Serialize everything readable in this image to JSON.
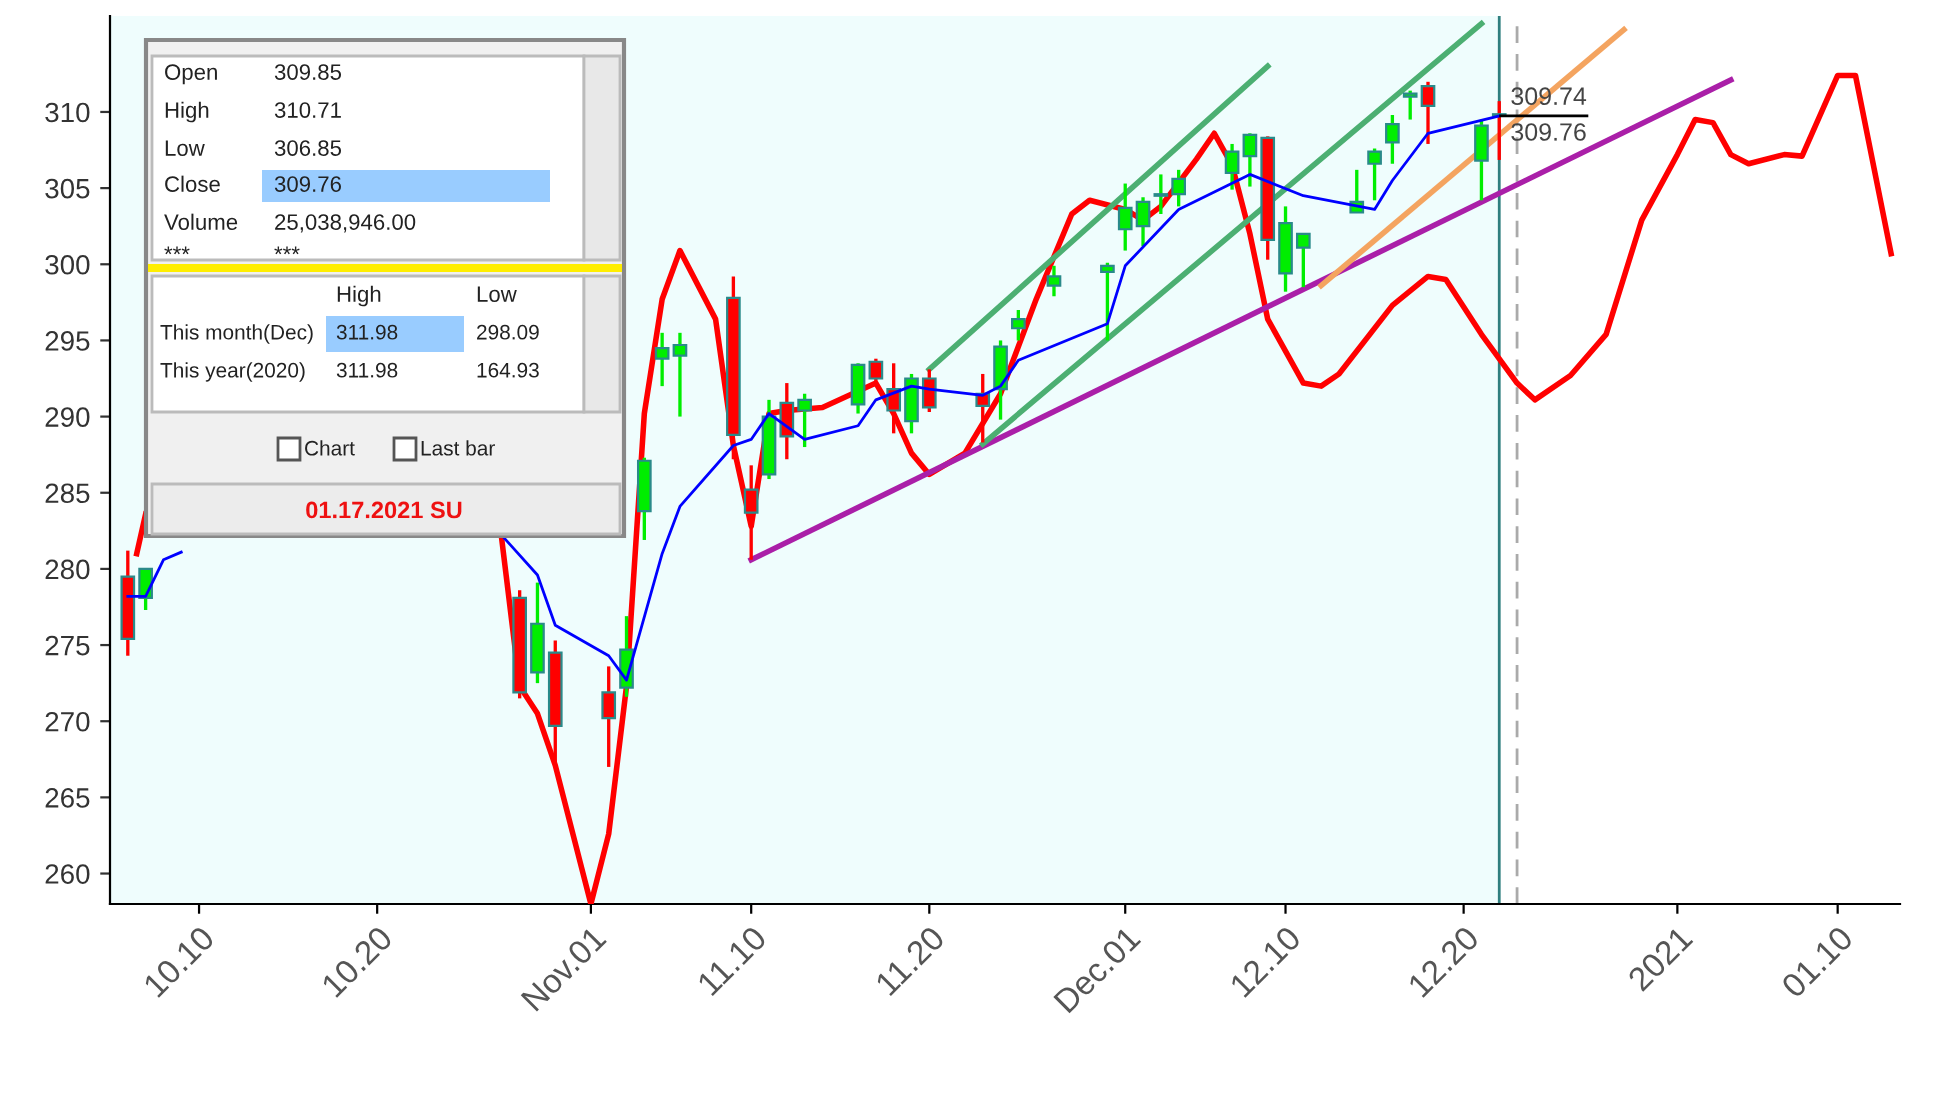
{
  "chart_data": {
    "type": "candlestick",
    "x": [
      "2020-10-06",
      "2020-10-07",
      "2020-10-28",
      "2020-10-29",
      "2020-10-30",
      "2020-11-02",
      "2020-11-03",
      "2020-11-04",
      "2020-11-05",
      "2020-11-06",
      "2020-11-09",
      "2020-11-10",
      "2020-11-11",
      "2020-11-12",
      "2020-11-13",
      "2020-11-16",
      "2020-11-17",
      "2020-11-18",
      "2020-11-19",
      "2020-11-20",
      "2020-11-23",
      "2020-11-24",
      "2020-11-25",
      "2020-11-27",
      "2020-11-30",
      "2020-12-01",
      "2020-12-02",
      "2020-12-03",
      "2020-12-04",
      "2020-12-07",
      "2020-12-08",
      "2020-12-09",
      "2020-12-10",
      "2020-12-11",
      "2020-12-14",
      "2020-12-15",
      "2020-12-16",
      "2020-12-17",
      "2020-12-18",
      "2020-12-21",
      "2020-12-22"
    ],
    "ohlc": [
      [
        279.5,
        281.2,
        274.3,
        275.4
      ],
      [
        278.1,
        280.0,
        277.3,
        280.0
      ],
      [
        278.1,
        278.6,
        271.5,
        271.9
      ],
      [
        273.2,
        279.1,
        272.5,
        276.4
      ],
      [
        274.5,
        275.3,
        267.1,
        269.7
      ],
      [
        271.9,
        273.6,
        267.0,
        270.2
      ],
      [
        272.2,
        276.9,
        271.6,
        274.7
      ],
      [
        283.8,
        287.3,
        281.9,
        287.1
      ],
      [
        293.8,
        295.5,
        292.0,
        294.5
      ],
      [
        294.0,
        295.5,
        290.0,
        294.7
      ],
      [
        297.8,
        299.2,
        287.2,
        288.8
      ],
      [
        285.2,
        286.8,
        280.6,
        283.7
      ],
      [
        286.2,
        291.1,
        285.9,
        290.0
      ],
      [
        290.9,
        292.2,
        287.2,
        288.7
      ],
      [
        290.4,
        291.5,
        288.0,
        291.1
      ],
      [
        290.8,
        293.5,
        290.2,
        293.4
      ],
      [
        293.6,
        293.8,
        292.0,
        292.5
      ],
      [
        291.8,
        293.5,
        288.9,
        290.4
      ],
      [
        289.7,
        292.8,
        288.9,
        292.5
      ],
      [
        292.5,
        293.1,
        290.3,
        290.6
      ],
      [
        291.5,
        292.8,
        288.3,
        290.7
      ],
      [
        291.8,
        295.0,
        289.8,
        294.6
      ],
      [
        295.8,
        297.0,
        295.0,
        296.4
      ],
      [
        298.6,
        299.9,
        297.9,
        299.2
      ],
      [
        299.5,
        300.1,
        295.0,
        299.9
      ],
      [
        302.3,
        305.3,
        300.9,
        303.7
      ],
      [
        302.5,
        304.4,
        301.2,
        304.1
      ],
      [
        304.5,
        305.9,
        303.3,
        304.6
      ],
      [
        304.6,
        306.2,
        303.8,
        305.6
      ],
      [
        306.0,
        307.9,
        304.9,
        307.4
      ],
      [
        307.1,
        308.6,
        305.1,
        308.5
      ],
      [
        308.3,
        308.4,
        300.3,
        301.6
      ],
      [
        299.4,
        303.8,
        298.2,
        302.7
      ],
      [
        301.1,
        302.0,
        298.5,
        302.0
      ],
      [
        303.4,
        306.2,
        303.4,
        304.1
      ],
      [
        306.6,
        307.6,
        304.2,
        307.4
      ],
      [
        308.0,
        309.8,
        306.6,
        309.2
      ],
      [
        311.0,
        311.4,
        309.5,
        311.2
      ],
      [
        311.7,
        311.98,
        307.9,
        310.4
      ],
      [
        306.8,
        309.5,
        304.2,
        309.1
      ],
      [
        309.85,
        310.71,
        306.85,
        309.76
      ]
    ],
    "colors": [
      "#ff0000",
      "#00ee00",
      "#ff0000",
      "#00ee00",
      "#ff0000",
      "#ff0000",
      "#00ee00",
      "#00ee00",
      "#00ee00",
      "#00ee00",
      "#ff0000",
      "#ff0000",
      "#00ee00",
      "#ff0000",
      "#00ee00",
      "#00ee00",
      "#ff0000",
      "#ff0000",
      "#00ee00",
      "#ff0000",
      "#ff0000",
      "#00ee00",
      "#00ee00",
      "#00ee00",
      "#00ee00",
      "#00ee00",
      "#00ee00",
      "#00ee00",
      "#00ee00",
      "#00ee00",
      "#00ee00",
      "#ff0000",
      "#00ee00",
      "#00ee00",
      "#00ee00",
      "#00ee00",
      "#00ee00",
      "#00ee00",
      "#ff0000",
      "#00ee00",
      "#ff0000"
    ],
    "series": [
      {
        "type": "line",
        "color": "#0000ff",
        "x": [
          "2020-10-06",
          "2020-10-07",
          "2020-10-08",
          "2020-10-09",
          "2020-10-20",
          "2020-10-27",
          "2020-10-29",
          "2020-10-30",
          "2020-11-02",
          "2020-11-03",
          "2020-11-05",
          "2020-11-06",
          "2020-11-09",
          "2020-11-10",
          "2020-11-11",
          "2020-11-13",
          "2020-11-16",
          "2020-11-17",
          "2020-11-19",
          "2020-11-20",
          "2020-11-23",
          "2020-11-24",
          "2020-11-25",
          "2020-11-30",
          "2020-12-01",
          "2020-12-04",
          "2020-12-08",
          "2020-12-11",
          "2020-12-15",
          "2020-12-16",
          "2020-12-18",
          "2020-12-22"
        ],
        "values": [
          278.2,
          278.2,
          280.6,
          281.1,
          null,
          282.2,
          279.6,
          276.3,
          274.3,
          272.7,
          281.0,
          284.1,
          288.1,
          288.5,
          290.2,
          288.5,
          289.4,
          291.1,
          292.0,
          291.8,
          291.4,
          292.0,
          293.7,
          296.1,
          299.9,
          303.6,
          305.9,
          304.5,
          303.6,
          305.5,
          308.6,
          309.74
        ]
      },
      {
        "type": "line",
        "color": "#ff0000",
        "x": [
          "2020-10-06T12:00",
          "2020-10-07",
          "2020-10-20",
          "2020-10-27",
          "2020-10-28",
          "2020-10-29",
          "2020-10-30",
          "2020-11-01",
          "2020-11-02",
          "2020-11-03",
          "2020-11-04",
          "2020-11-05",
          "2020-11-06",
          "2020-11-08",
          "2020-11-09",
          "2020-11-10",
          "2020-11-11",
          "2020-11-12",
          "2020-11-14",
          "2020-11-17",
          "2020-11-18",
          "2020-11-19",
          "2020-11-20",
          "2020-11-22",
          "2020-11-24",
          "2020-11-26",
          "2020-11-28",
          "2020-11-29",
          "2020-12-01",
          "2020-12-02",
          "2020-12-03",
          "2020-12-05",
          "2020-12-06",
          "2020-12-07",
          "2020-12-08",
          "2020-12-09",
          "2020-12-11",
          "2020-12-12",
          "2020-12-13",
          "2020-12-16",
          "2020-12-18",
          "2020-12-19",
          "2020-12-21",
          "2020-12-23",
          "2020-12-24",
          "2020-12-26",
          "2020-12-28",
          "2020-12-30",
          "2021-01-01",
          "2021-01-02",
          "2021-01-03",
          "2021-01-04",
          "2021-01-05",
          "2021-01-07",
          "2021-01-08",
          "2021-01-10",
          "2021-01-11",
          "2021-01-13"
        ],
        "values": [
          281.0,
          283.6,
          null,
          281.9,
          272.3,
          270.5,
          267.1,
          258.0,
          262.6,
          272.3,
          290.2,
          297.7,
          300.9,
          296.4,
          288.1,
          282.8,
          290.2,
          290.4,
          290.6,
          292.2,
          290.2,
          287.6,
          286.2,
          287.6,
          291.5,
          297.7,
          303.3,
          304.2,
          303.6,
          302.9,
          303.8,
          306.9,
          308.6,
          306.5,
          302.0,
          296.4,
          292.2,
          292.0,
          292.8,
          297.3,
          299.2,
          299.0,
          295.4,
          292.2,
          291.1,
          292.7,
          295.4,
          302.9,
          307.2,
          309.5,
          309.3,
          307.2,
          306.6,
          307.2,
          307.1,
          312.4,
          312.4,
          300.7
        ]
      },
      {
        "type": "line",
        "color": "#aa1fa8",
        "x": [
          "2020-11-10",
          "2021-01-04"
        ],
        "values": [
          280.6,
          312.1
        ]
      },
      {
        "type": "line",
        "color": "#4caf72",
        "x": [
          "2020-11-20",
          "2020-12-09"
        ],
        "values": [
          293.1,
          313.0
        ]
      },
      {
        "type": "line",
        "color": "#4caf72",
        "x": [
          "2020-11-23",
          "2020-12-21"
        ],
        "values": [
          288.2,
          315.8
        ]
      },
      {
        "type": "line",
        "color": "#f4a460",
        "x": [
          "2020-12-12",
          "2020-12-29"
        ],
        "values": [
          298.6,
          315.4
        ]
      }
    ],
    "xlim": [
      "2020-10-05",
      "2021-01-13T12:00"
    ],
    "ylim": [
      258.0,
      316.3
    ],
    "yticks": [
      260,
      265,
      270,
      275,
      280,
      285,
      290,
      295,
      300,
      305,
      310
    ],
    "xticks": [
      {
        "value": "2020-10-10",
        "label": "10.10"
      },
      {
        "value": "2020-10-20",
        "label": "10.20"
      },
      {
        "value": "2020-11-01",
        "label": "Nov.01"
      },
      {
        "value": "2020-11-10",
        "label": "11.10"
      },
      {
        "value": "2020-11-20",
        "label": "11.20"
      },
      {
        "value": "2020-12-01",
        "label": "Dec.01"
      },
      {
        "value": "2020-12-10",
        "label": "12.10"
      },
      {
        "value": "2020-12-20",
        "label": "12.20"
      },
      {
        "value": "2021-01-01",
        "label": "2021"
      },
      {
        "value": "2021-01-10",
        "label": "01.10"
      }
    ],
    "bands": [
      {
        "axis": "x",
        "from": "2020-10-05",
        "to": "2020-12-22",
        "color": "#effdfd"
      }
    ],
    "ref_lines": [
      {
        "axis": "x",
        "value": "2020-12-22",
        "color": "#2f7f7f",
        "line_style": "solid"
      },
      {
        "axis": "x",
        "value": "2020-12-23",
        "color": "#aaaaaa",
        "line_style": "dashed"
      }
    ],
    "grid": false,
    "annotations": [
      {
        "text": "309.74",
        "x": "2020-12-22",
        "y": 309.74
      },
      {
        "text": "309.76",
        "x": "2020-12-22",
        "y": 309.76
      },
      "Open",
      "309.85",
      "High",
      "310.71",
      "Low",
      "306.85",
      "Close",
      "309.76",
      "Volume",
      "25,038,946.00",
      "***",
      "***",
      "High",
      "Low",
      "This month(Dec)",
      "311.98",
      "298.09",
      "This year(2020)",
      "311.98",
      "164.93",
      "Chart",
      "Last bar",
      "01.17.2021 SU"
    ]
  }
}
